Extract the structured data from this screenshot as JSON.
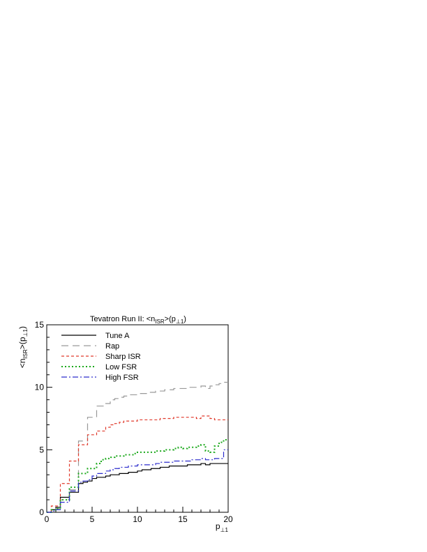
{
  "chart_data": {
    "type": "line",
    "title": "Tevatron Run II: <n_ISR>(p_⊥1)",
    "title_parts": {
      "main": "Tevatron Run II: <n",
      "sub": "ISR",
      "mid": ">(p",
      "sub2": "⊥1",
      "end": ")"
    },
    "xlabel": "p_⊥1",
    "xlabel_parts": {
      "main": "p",
      "sub": "⊥1"
    },
    "ylabel": "<n_ISR>(p_⊥1)",
    "ylabel_parts": {
      "main": "<n",
      "sub": "ISR",
      "mid": ">(p",
      "sub2": "⊥1",
      "end": ")"
    },
    "xlim": [
      0,
      20
    ],
    "ylim": [
      0,
      15
    ],
    "xticks": [
      0,
      5,
      10,
      15,
      20
    ],
    "yticks": [
      0,
      5,
      10,
      15
    ],
    "grid": false,
    "legend_position": "top-left",
    "bin_edges": [
      0,
      0.5,
      1,
      1.5,
      2,
      2.5,
      3,
      3.5,
      4,
      4.5,
      5,
      5.5,
      6,
      6.5,
      7,
      7.5,
      8,
      8.5,
      9,
      9.5,
      10,
      10.5,
      11,
      11.5,
      12,
      12.5,
      13,
      13.5,
      14,
      14.5,
      15,
      15.5,
      16,
      16.5,
      17,
      17.5,
      18,
      18.5,
      19,
      19.5,
      20
    ],
    "series": [
      {
        "name": "Tune A",
        "color": "#000000",
        "dash": "",
        "values": [
          0.0,
          0.2,
          0.4,
          1.2,
          1.2,
          1.6,
          1.6,
          2.3,
          2.4,
          2.5,
          2.7,
          2.8,
          2.8,
          2.9,
          3.0,
          3.0,
          3.1,
          3.1,
          3.2,
          3.2,
          3.3,
          3.4,
          3.4,
          3.5,
          3.5,
          3.6,
          3.6,
          3.7,
          3.7,
          3.7,
          3.7,
          3.8,
          3.8,
          3.8,
          3.9,
          3.8,
          3.9,
          3.9,
          3.9,
          3.9
        ]
      },
      {
        "name": "Rap",
        "color": "#999999",
        "dash": "10,6",
        "values": [
          0.0,
          0.2,
          0.3,
          1.0,
          1.0,
          1.8,
          1.8,
          5.7,
          5.7,
          7.6,
          7.6,
          8.5,
          8.5,
          8.7,
          9.0,
          9.1,
          9.2,
          9.3,
          9.4,
          9.4,
          9.5,
          9.5,
          9.6,
          9.6,
          9.7,
          9.7,
          9.8,
          9.8,
          9.9,
          9.9,
          9.9,
          10.0,
          10.0,
          10.0,
          10.1,
          9.9,
          10.1,
          10.2,
          10.3,
          10.4
        ]
      },
      {
        "name": "Sharp ISR",
        "color": "#e0392b",
        "dash": "4,3",
        "values": [
          0.0,
          0.5,
          0.5,
          2.3,
          2.3,
          4.1,
          4.1,
          5.4,
          5.4,
          6.2,
          6.2,
          6.5,
          6.5,
          6.8,
          7.0,
          7.1,
          7.2,
          7.3,
          7.3,
          7.3,
          7.4,
          7.4,
          7.4,
          7.4,
          7.4,
          7.5,
          7.5,
          7.5,
          7.6,
          7.6,
          7.6,
          7.6,
          7.6,
          7.5,
          7.7,
          7.7,
          7.5,
          7.4,
          7.4,
          7.4
        ]
      },
      {
        "name": "Low FSR",
        "color": "#1aa81a",
        "dash": "2,3",
        "values": [
          0.0,
          0.2,
          0.3,
          1.0,
          1.0,
          2.0,
          2.0,
          3.1,
          3.1,
          3.5,
          3.5,
          3.9,
          4.2,
          4.3,
          4.4,
          4.5,
          4.5,
          4.6,
          4.6,
          4.7,
          4.8,
          4.8,
          4.8,
          4.8,
          4.9,
          4.9,
          5.0,
          5.0,
          5.1,
          5.2,
          5.1,
          5.2,
          5.2,
          5.3,
          5.4,
          4.9,
          4.8,
          5.3,
          5.6,
          5.8
        ]
      },
      {
        "name": "High FSR",
        "color": "#2b2bcc",
        "dash": "8,3,2,3",
        "values": [
          0.0,
          0.1,
          0.2,
          0.8,
          0.8,
          1.7,
          1.7,
          2.4,
          2.5,
          2.6,
          2.9,
          3.1,
          3.1,
          3.3,
          3.4,
          3.5,
          3.6,
          3.6,
          3.7,
          3.7,
          3.8,
          3.8,
          3.8,
          3.8,
          3.9,
          4.0,
          4.0,
          4.0,
          4.1,
          4.1,
          4.1,
          4.1,
          4.2,
          4.2,
          4.3,
          4.2,
          4.2,
          4.3,
          4.3,
          5.0
        ]
      }
    ]
  }
}
